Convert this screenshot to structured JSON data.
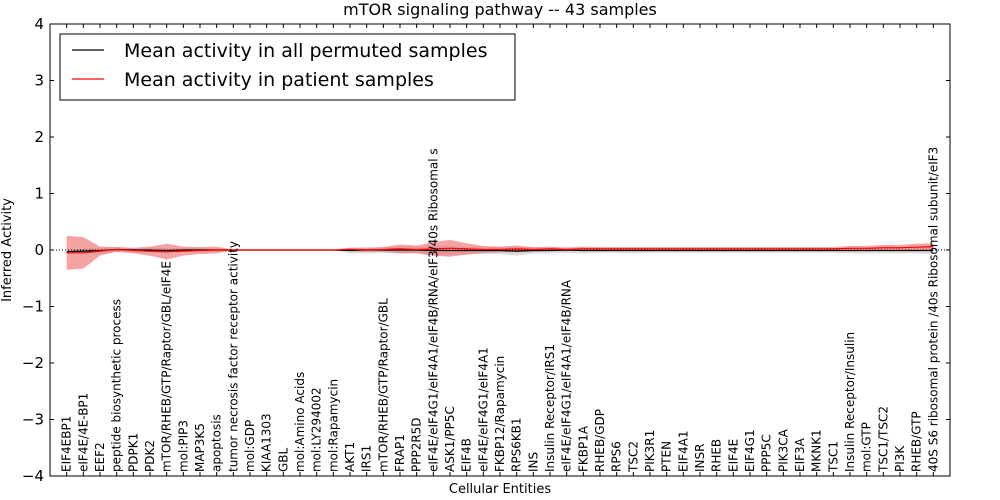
{
  "chart_data": {
    "type": "line",
    "title": "mTOR signaling pathway -- 43 samples",
    "xlabel": "Cellular Entities",
    "ylabel": "Inferred Activity",
    "ylim": [
      -4,
      4
    ],
    "yticks": [
      "4",
      "3",
      "2",
      "1",
      "0",
      "−1",
      "−2",
      "−3",
      "−4"
    ],
    "grid": false,
    "legend_position": "top-left",
    "categories": [
      "EIF4EBP1",
      "eIF4E/4E-BP1",
      "EEF2",
      "peptide biosynthetic process",
      "PDPK1",
      "PDK2",
      "mTOR/RHEB/GTP/Raptor/GBL/eIF4E",
      "mol:PIP3",
      "MAP3K5",
      "apoptosis",
      "tumor necrosis factor receptor activity",
      "mol:GDP",
      "KIAA1303",
      "GBL",
      "mol:Amino Acids",
      "mol:LY294002",
      "mol:Rapamycin",
      "AKT1",
      "IRS1",
      "mTOR/RHEB/GTP/Raptor/GBL",
      "FRAP1",
      "PPP2R5D",
      "eIF4E/eIF4G1/eIF4A1/eIF4B/RNA/eIF3/40s Ribosomal s",
      "ASK1/PP5C",
      "EIF4B",
      "eIF4E/eIF4G1/eIF4A1",
      "FKBP12/Rapamycin",
      "RPS6KB1",
      "INS",
      "Insulin Receptor/IRS1",
      "eIF4E/eIF4G1/eIF4A1/eIF4B/RNA",
      "FKBP1A",
      "RHEB/GDP",
      "RPS6",
      "TSC2",
      "PIK3R1",
      "PTEN",
      "EIF4A1",
      "INSR",
      "RHEB",
      "EIF4E",
      "EIF4G1",
      "PPP5C",
      "PIK3CA",
      "EIF3A",
      "MKNK1",
      "TSC1",
      "Insulin Receptor/Insulin",
      "mol:GTP",
      "TSC1/TSC2",
      "PI3K",
      "RHEB/GTP",
      "40S S6 ribosomal protein /40s Ribosomal subunit/eIF3"
    ],
    "series": [
      {
        "name": "Mean activity in all permuted samples",
        "color": "#000000",
        "band_color": "#b0b0b0",
        "values": [
          -0.03,
          -0.02,
          -0.01,
          0.01,
          0.0,
          0.0,
          -0.01,
          0.0,
          0.0,
          0.0,
          0.0,
          0.0,
          0.0,
          0.0,
          0.0,
          0.0,
          0.0,
          -0.01,
          0.0,
          0.0,
          0.0,
          0.0,
          -0.01,
          -0.01,
          -0.01,
          -0.01,
          -0.01,
          -0.02,
          -0.01,
          -0.01,
          0.0,
          -0.01,
          -0.01,
          -0.01,
          -0.01,
          -0.01,
          -0.01,
          -0.01,
          -0.01,
          -0.01,
          -0.01,
          -0.01,
          -0.01,
          -0.01,
          -0.01,
          -0.01,
          -0.01,
          -0.01,
          -0.01,
          -0.01,
          -0.01,
          -0.01,
          -0.01
        ],
        "spread": [
          0.04,
          0.04,
          0.05,
          0.04,
          0.03,
          0.04,
          0.05,
          0.03,
          0.03,
          0.03,
          0.01,
          0.01,
          0.01,
          0.01,
          0.01,
          0.01,
          0.01,
          0.05,
          0.06,
          0.05,
          0.06,
          0.05,
          0.08,
          0.08,
          0.07,
          0.06,
          0.06,
          0.08,
          0.05,
          0.05,
          0.05,
          0.05,
          0.04,
          0.04,
          0.05,
          0.04,
          0.04,
          0.04,
          0.04,
          0.04,
          0.04,
          0.04,
          0.04,
          0.04,
          0.04,
          0.04,
          0.04,
          0.05,
          0.05,
          0.05,
          0.05,
          0.05,
          0.06
        ]
      },
      {
        "name": "Mean activity in patient samples",
        "color": "#ff0000",
        "band_color": "#ee6666",
        "values": [
          -0.05,
          -0.05,
          -0.02,
          0.01,
          -0.01,
          -0.02,
          -0.03,
          -0.02,
          -0.01,
          0.0,
          0.0,
          0.0,
          0.0,
          0.0,
          0.0,
          0.0,
          0.0,
          0.01,
          0.0,
          0.01,
          0.02,
          0.01,
          0.02,
          0.03,
          0.02,
          0.01,
          0.01,
          0.02,
          0.01,
          0.02,
          0.01,
          0.02,
          0.02,
          0.02,
          0.02,
          0.02,
          0.02,
          0.02,
          0.02,
          0.02,
          0.02,
          0.02,
          0.02,
          0.02,
          0.02,
          0.02,
          0.02,
          0.03,
          0.03,
          0.04,
          0.04,
          0.05,
          0.06
        ],
        "spread": [
          0.3,
          0.28,
          0.08,
          0.04,
          0.05,
          0.08,
          0.14,
          0.08,
          0.06,
          0.06,
          0.01,
          0.01,
          0.01,
          0.01,
          0.01,
          0.01,
          0.01,
          0.03,
          0.03,
          0.04,
          0.08,
          0.07,
          0.12,
          0.15,
          0.1,
          0.06,
          0.05,
          0.06,
          0.04,
          0.04,
          0.03,
          0.04,
          0.03,
          0.03,
          0.03,
          0.03,
          0.03,
          0.03,
          0.03,
          0.03,
          0.03,
          0.03,
          0.03,
          0.03,
          0.03,
          0.03,
          0.03,
          0.04,
          0.04,
          0.05,
          0.05,
          0.06,
          0.06
        ]
      }
    ]
  }
}
